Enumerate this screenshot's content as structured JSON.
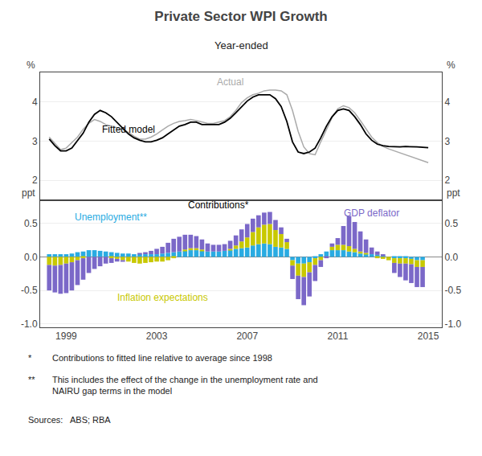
{
  "chart_data": [
    {
      "type": "line",
      "title": "Private Sector WPI Growth",
      "subtitle": "Year-ended",
      "ylabel": "%",
      "y2label": "%",
      "x": [
        1998.25,
        1998.5,
        1998.75,
        1999.0,
        1999.25,
        1999.5,
        1999.75,
        2000.0,
        2000.25,
        2000.5,
        2000.75,
        2001.0,
        2001.25,
        2001.5,
        2001.75,
        2002.0,
        2002.25,
        2002.5,
        2002.75,
        2003.0,
        2003.25,
        2003.5,
        2003.75,
        2004.0,
        2004.25,
        2004.5,
        2004.75,
        2005.0,
        2005.25,
        2005.5,
        2005.75,
        2006.0,
        2006.25,
        2006.5,
        2006.75,
        2007.0,
        2007.25,
        2007.5,
        2007.75,
        2008.0,
        2008.25,
        2008.5,
        2008.75,
        2009.0,
        2009.25,
        2009.5,
        2009.75,
        2010.0,
        2010.25,
        2010.5,
        2010.75,
        2011.0,
        2011.25,
        2011.5,
        2011.75,
        2012.0,
        2012.25,
        2012.5,
        2012.75,
        2013.0,
        2013.25,
        2013.5,
        2013.75,
        2014.0,
        2014.25,
        2014.5,
        2014.75,
        2015.0
      ],
      "series": [
        {
          "name": "Actual",
          "color": "#aaaaaa",
          "values": [
            3.1,
            2.95,
            2.78,
            2.82,
            2.95,
            3.1,
            3.3,
            3.45,
            3.55,
            3.5,
            3.42,
            3.38,
            3.35,
            3.3,
            3.22,
            3.12,
            3.05,
            3.05,
            3.1,
            3.18,
            3.28,
            3.38,
            3.45,
            3.5,
            3.52,
            3.55,
            3.52,
            3.48,
            3.45,
            3.45,
            3.48,
            3.52,
            3.62,
            3.78,
            3.98,
            4.1,
            4.18,
            4.22,
            4.28,
            4.3,
            4.3,
            4.28,
            4.18,
            3.78,
            3.25,
            2.85,
            2.68,
            2.65,
            2.98,
            3.3,
            3.6,
            3.82,
            3.9,
            3.85,
            3.72,
            3.52,
            3.32,
            3.1,
            2.96,
            2.86,
            2.8,
            2.75,
            2.7,
            2.65,
            2.6,
            2.55,
            2.5,
            2.45
          ]
        },
        {
          "name": "Fitted model",
          "color": "#000000",
          "values": [
            3.05,
            2.88,
            2.75,
            2.75,
            2.82,
            3.0,
            3.2,
            3.48,
            3.68,
            3.78,
            3.72,
            3.62,
            3.48,
            3.32,
            3.18,
            3.08,
            3.02,
            2.98,
            2.98,
            3.02,
            3.08,
            3.18,
            3.28,
            3.38,
            3.42,
            3.48,
            3.48,
            3.42,
            3.42,
            3.42,
            3.42,
            3.48,
            3.58,
            3.72,
            3.88,
            4.02,
            4.12,
            4.18,
            4.18,
            4.18,
            4.08,
            3.88,
            3.5,
            2.98,
            2.72,
            2.68,
            2.72,
            2.82,
            3.08,
            3.38,
            3.62,
            3.78,
            3.82,
            3.78,
            3.62,
            3.42,
            3.18,
            3.02,
            2.92,
            2.88,
            2.86,
            2.85,
            2.85,
            2.86,
            2.86,
            2.85,
            2.84,
            2.83
          ]
        }
      ],
      "xlim": [
        1997.85,
        2015.6
      ],
      "ylim": [
        1.5,
        4.75
      ],
      "yticks": [
        2,
        3,
        4
      ],
      "y2lim": [
        1.5,
        4.75
      ],
      "y2ticks": [
        2,
        3,
        4
      ],
      "grid": true,
      "tick_labels": "y",
      "annotations": [
        {
          "text": "Actual",
          "x": 2005.6,
          "y": 4.32,
          "color": "#aaaaaa"
        },
        {
          "text": "Fitted model",
          "x": 2000.5,
          "y": 3.1,
          "color": "#000000"
        }
      ]
    },
    {
      "type": "bar",
      "stacked": true,
      "ylabel": "ppt",
      "y2label": "ppt",
      "x": [
        1998.25,
        1998.5,
        1998.75,
        1999.0,
        1999.25,
        1999.5,
        1999.75,
        2000.0,
        2000.25,
        2000.5,
        2000.75,
        2001.0,
        2001.25,
        2001.5,
        2001.75,
        2002.0,
        2002.25,
        2002.5,
        2002.75,
        2003.0,
        2003.25,
        2003.5,
        2003.75,
        2004.0,
        2004.25,
        2004.5,
        2004.75,
        2005.0,
        2005.25,
        2005.5,
        2005.75,
        2006.0,
        2006.25,
        2006.5,
        2006.75,
        2007.0,
        2007.25,
        2007.5,
        2007.75,
        2008.0,
        2008.25,
        2008.5,
        2008.75,
        2009.0,
        2009.25,
        2009.5,
        2009.75,
        2010.0,
        2010.25,
        2010.5,
        2010.75,
        2011.0,
        2011.25,
        2011.5,
        2011.75,
        2012.0,
        2012.25,
        2012.5,
        2012.75,
        2013.0,
        2013.25,
        2013.5,
        2013.75,
        2014.0,
        2014.25,
        2014.5,
        2014.75
      ],
      "series": [
        {
          "name": "Unemployment**",
          "color": "#29ABE2",
          "values": [
            0.04,
            0.04,
            0.04,
            0.04,
            0.05,
            0.07,
            0.08,
            0.1,
            0.1,
            0.09,
            0.08,
            0.07,
            0.06,
            0.05,
            0.05,
            0.04,
            0.04,
            0.04,
            0.04,
            0.04,
            0.05,
            0.06,
            0.07,
            0.08,
            0.09,
            0.1,
            0.1,
            0.09,
            0.08,
            0.08,
            0.08,
            0.09,
            0.1,
            0.12,
            0.13,
            0.14,
            0.17,
            0.19,
            0.2,
            0.19,
            0.15,
            0.14,
            0.12,
            -0.05,
            -0.1,
            -0.1,
            -0.08,
            -0.02,
            0.04,
            0.08,
            0.1,
            0.1,
            0.1,
            0.08,
            0.07,
            0.05,
            0.04,
            0.04,
            0.03,
            0.02,
            0.0,
            -0.02,
            -0.02,
            -0.02,
            -0.03,
            -0.05,
            -0.05
          ]
        },
        {
          "name": "Inflation expectations",
          "color": "#C8C800",
          "values": [
            -0.12,
            -0.13,
            -0.12,
            -0.1,
            -0.08,
            -0.05,
            -0.02,
            0.0,
            0.0,
            0.0,
            0.0,
            -0.02,
            -0.03,
            -0.05,
            -0.07,
            -0.09,
            -0.1,
            -0.09,
            -0.08,
            -0.07,
            -0.07,
            -0.05,
            -0.02,
            0.0,
            0.02,
            0.03,
            0.03,
            0.02,
            0.0,
            0.0,
            0.0,
            0.0,
            0.02,
            0.05,
            0.1,
            0.15,
            0.2,
            0.25,
            0.28,
            0.3,
            0.25,
            0.2,
            0.1,
            -0.08,
            -0.18,
            -0.2,
            -0.15,
            -0.1,
            -0.05,
            0.0,
            0.05,
            0.08,
            0.08,
            0.08,
            0.05,
            0.03,
            0.02,
            0.0,
            -0.02,
            -0.03,
            -0.05,
            -0.07,
            -0.08,
            -0.08,
            -0.08,
            -0.1,
            -0.1
          ]
        },
        {
          "name": "GDP deflator",
          "color": "#7B68C8",
          "values": [
            -0.38,
            -0.4,
            -0.43,
            -0.44,
            -0.42,
            -0.37,
            -0.32,
            -0.24,
            -0.18,
            -0.14,
            -0.1,
            -0.07,
            -0.04,
            -0.02,
            0.0,
            0.0,
            0.01,
            0.03,
            0.05,
            0.08,
            0.1,
            0.15,
            0.2,
            0.22,
            0.22,
            0.2,
            0.18,
            0.15,
            0.12,
            0.1,
            0.1,
            0.1,
            0.12,
            0.15,
            0.18,
            0.2,
            0.2,
            0.18,
            0.18,
            0.18,
            0.15,
            0.1,
            0.05,
            -0.2,
            -0.35,
            -0.42,
            -0.36,
            -0.24,
            -0.1,
            -0.02,
            0.05,
            0.1,
            0.28,
            0.45,
            0.4,
            0.3,
            0.2,
            0.1,
            0.05,
            0.02,
            0.0,
            -0.15,
            -0.2,
            -0.25,
            -0.28,
            -0.3,
            -0.3
          ]
        }
      ],
      "xlim": [
        1997.85,
        2015.6
      ],
      "xticks": [
        1999,
        2003,
        2007,
        2011,
        2015
      ],
      "ylim": [
        -1.05,
        0.85
      ],
      "yticks": [
        {
          "value": -1.0,
          "label": "-1.0"
        },
        -0.5,
        {
          "value": 0.0,
          "label": "0.0"
        },
        0.5
      ],
      "y2lim": [
        -1.05,
        0.85
      ],
      "y2ticks": [
        {
          "value": -1.0,
          "label": "-1.0"
        },
        -0.5,
        {
          "value": 0.0,
          "label": "0.0"
        },
        0.5
      ],
      "grid": true,
      "annotations": [
        {
          "text": "Contributions*",
          "x": 2004.3,
          "y": 0.67,
          "color": "#000000"
        },
        {
          "text": "Unemployment**",
          "x": 1999.3,
          "y": 0.48,
          "color": "#29ABE2"
        },
        {
          "text": "Inflation expectations",
          "x": 2001.2,
          "y": -0.72,
          "color": "#C8C800"
        },
        {
          "text": "GDP deflator",
          "x": 2011.2,
          "y": 0.55,
          "color": "#7B68C8"
        }
      ],
      "footnotes": [
        {
          "bullet": "*",
          "text": "Contributions to fitted line relative to average since 1998"
        },
        {
          "bullet": "**",
          "text": "This includes the effect of the change in the unemployment rate and\nNAIRU gap terms in the model"
        },
        {
          "text": "Sources:   ABS; RBA"
        }
      ]
    }
  ]
}
